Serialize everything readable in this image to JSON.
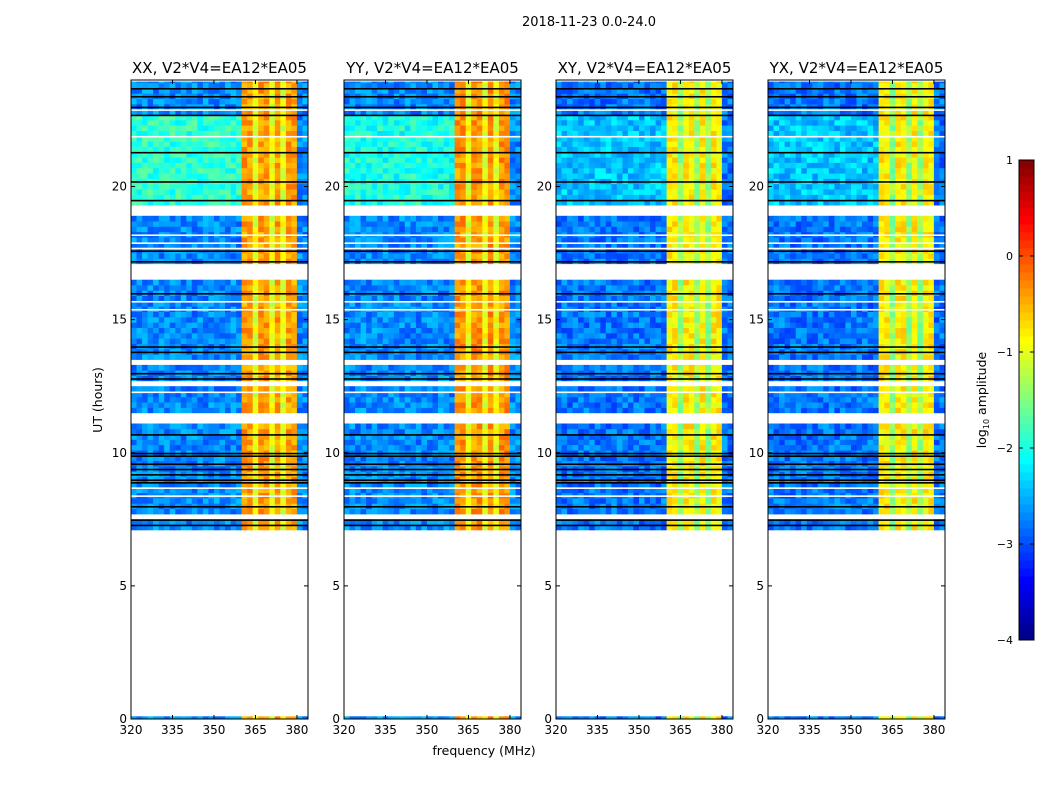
{
  "suptitle": "2018-11-23 0.0-24.0",
  "chart_data": {
    "type": "heatmap",
    "title": "2018-11-23 0.0-24.0",
    "xlabel": "frequency (MHz)",
    "ylabel": "UT (hours)",
    "xlim": [
      320,
      384
    ],
    "ylim": [
      0,
      24
    ],
    "xticks": [
      "320",
      "335",
      "350",
      "365",
      "380"
    ],
    "yticks": [
      "0",
      "5",
      "10",
      "15",
      "20"
    ],
    "data_ut_ranges": [
      [
        0,
        0.1
      ],
      [
        7.1,
        24
      ]
    ],
    "flagged_ut_ranges": [
      [
        18.85,
        19.15
      ],
      [
        16.5,
        17.05
      ],
      [
        13.3,
        13.5
      ],
      [
        12.5,
        12.7
      ],
      [
        11.15,
        11.35
      ],
      [
        7.55,
        7.7
      ]
    ],
    "dark_ut_lines": [
      23.7,
      23.4,
      23.0,
      22.7,
      21.3,
      20.2,
      19.5,
      17.6,
      17.2,
      16.0,
      14.0,
      13.8,
      13.0,
      12.8,
      10.7,
      10.0,
      9.9,
      9.6,
      9.4,
      9.2,
      9.0,
      8.9,
      8.0,
      7.5,
      7.3
    ],
    "white_ut_lines": [
      24.0,
      22.9,
      21.9,
      18.2,
      17.9,
      17.7,
      15.7,
      15.4,
      12.3,
      8.7,
      8.4
    ],
    "rfi_band_mhz": [
      360,
      380
    ],
    "rfi_gap_mhz": [
      365.5,
      370.5,
      375
    ],
    "panels": [
      {
        "title": "XX, V2*V4=EA12*EA05",
        "background_log_amp": -2.7,
        "rfi_log_amp": -0.4,
        "bright_ut_range": [
          19.2,
          22.6
        ],
        "bright_log_amp": -1.9
      },
      {
        "title": "YY, V2*V4=EA12*EA05",
        "background_log_amp": -2.7,
        "rfi_log_amp": -0.35,
        "bright_ut_range": [
          19.2,
          22.6
        ],
        "bright_log_amp": -2.0
      },
      {
        "title": "XY, V2*V4=EA12*EA05",
        "background_log_amp": -2.8,
        "rfi_log_amp": -0.8,
        "bright_ut_range": [
          19.2,
          22.6
        ],
        "bright_log_amp": -2.4
      },
      {
        "title": "YX, V2*V4=EA12*EA05",
        "background_log_amp": -2.8,
        "rfi_log_amp": -0.8,
        "bright_ut_range": [
          19.2,
          22.6
        ],
        "bright_log_amp": -2.4
      }
    ],
    "colorbar": {
      "label": "log10 amplitude",
      "label_main": "log",
      "label_sub": "10",
      "label_rest": " amplitude",
      "range": [
        -4,
        1
      ],
      "ticks": [
        "−4",
        "−3",
        "−2",
        "−1",
        "0",
        "1"
      ],
      "colormap": "jet"
    }
  }
}
